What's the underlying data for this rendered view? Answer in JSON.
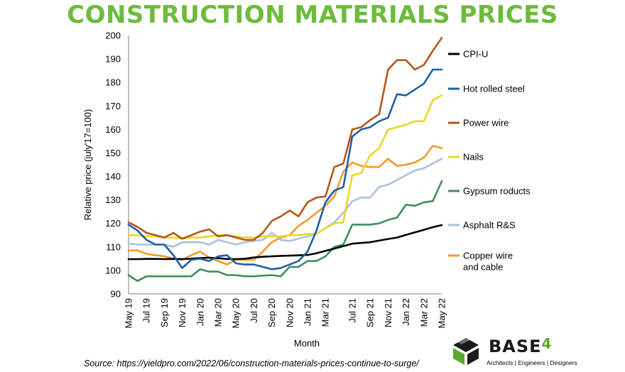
{
  "title": "CONSTRUCTION MATERIALS PRICES",
  "source": "Source: https://yieldpro.com/2022/06/construction-materials-prices-continue-to-surge/",
  "logo": {
    "name": "BASE",
    "superscript": "4",
    "tagline": "Architects | Engineers | Designers"
  },
  "colors": {
    "title": "#6dbb3c"
  },
  "chart_data": {
    "type": "line",
    "title": "CONSTRUCTION MATERIALS PRICES",
    "xlabel": "Month",
    "ylabel": "Relative price (july'17=100)",
    "ylim": [
      90,
      200
    ],
    "yticks": [
      90,
      100,
      110,
      120,
      130,
      140,
      150,
      160,
      170,
      180,
      190,
      200
    ],
    "xtick_labels": [
      "May 19",
      "Jul 19",
      "Sep 19",
      "Nov 19",
      "Jan 20",
      "Mar 20",
      "May 20",
      "Jul 20",
      "Sep 20",
      "Nov 20",
      "Jan 21",
      "Mar 21",
      "Jul 21",
      "Sep 21",
      "Nov 21",
      "Jan 22",
      "Mar 22",
      "May 22"
    ],
    "xtick_indices": [
      0,
      2,
      4,
      6,
      8,
      10,
      12,
      14,
      16,
      18,
      20,
      22,
      25,
      27,
      29,
      31,
      33,
      35
    ],
    "x": [
      "May 19",
      "Jun 19",
      "Jul 19",
      "Aug 19",
      "Sep 19",
      "Oct 19",
      "Nov 19",
      "Dec 19",
      "Jan 20",
      "Feb 20",
      "Mar 20",
      "Apr 20",
      "May 20",
      "Jun 20",
      "Jul 20",
      "Aug 20",
      "Sep 20",
      "Oct 20",
      "Nov 20",
      "Dec 20",
      "Jan 21",
      "Feb 21",
      "Mar 21",
      "Apr 21",
      "May 21",
      "Jul 21",
      "Aug 21",
      "Sep 21",
      "Oct 21",
      "Nov 21",
      "Dec 21",
      "Jan 22",
      "Feb 22",
      "Mar 22",
      "Apr 22",
      "May 22"
    ],
    "grid": false,
    "legend": "right",
    "series": [
      {
        "name": "CPI-U",
        "color": "#000000",
        "values": [
          104.8,
          104.8,
          104.9,
          104.9,
          104.8,
          104.9,
          104.8,
          105.0,
          105.3,
          105.4,
          105.2,
          104.9,
          104.8,
          105.0,
          105.5,
          105.8,
          106.0,
          106.2,
          106.3,
          106.4,
          106.6,
          107.3,
          108.3,
          109.3,
          110.3,
          111.4,
          111.7,
          112.0,
          112.7,
          113.4,
          114.0,
          115.1,
          116.2,
          117.3,
          118.4,
          119.3
        ]
      },
      {
        "name": "Hot rolled steel",
        "color": "#1f5fa6",
        "values": [
          119.5,
          117.0,
          113.0,
          111.0,
          111.0,
          106.5,
          101.0,
          104.5,
          105.0,
          104.0,
          106.0,
          106.5,
          103.0,
          102.5,
          102.5,
          101.5,
          100.5,
          101.0,
          102.5,
          104.0,
          108.0,
          117.0,
          129.0,
          134.0,
          135.5,
          157.0,
          160.0,
          161.0,
          163.5,
          165.0,
          175.0,
          174.5,
          177.0,
          179.5,
          185.5,
          185.5
        ]
      },
      {
        "name": "Power wire",
        "color": "#b5561c",
        "values": [
          120.5,
          118.5,
          116.0,
          115.0,
          114.0,
          116.0,
          113.5,
          115.0,
          116.5,
          117.5,
          114.5,
          115.0,
          114.0,
          113.0,
          113.0,
          116.0,
          121.0,
          123.0,
          125.5,
          123.0,
          129.0,
          131.0,
          131.5,
          144.0,
          145.5,
          160.0,
          161.0,
          164.0,
          166.5,
          185.5,
          189.5,
          189.5,
          185.5,
          187.5,
          193.5,
          199.0
        ]
      },
      {
        "name": "Nails",
        "color": "#e6d72a",
        "values": [
          115.0,
          115.0,
          114.5,
          114.5,
          114.0,
          114.0,
          113.5,
          114.0,
          114.0,
          114.5,
          115.0,
          115.0,
          114.5,
          114.0,
          114.0,
          114.5,
          114.5,
          114.5,
          115.0,
          115.0,
          115.5,
          115.5,
          118.0,
          120.0,
          120.5,
          140.5,
          141.5,
          149.0,
          152.0,
          160.0,
          161.0,
          162.0,
          163.5,
          163.5,
          172.5,
          174.5
        ]
      },
      {
        "name": "Gypsum roducts",
        "color": "#3f8f5b",
        "values": [
          98.0,
          95.5,
          97.5,
          97.5,
          97.5,
          97.5,
          97.5,
          97.5,
          100.5,
          99.5,
          99.5,
          98.0,
          98.0,
          97.5,
          97.5,
          97.8,
          98.0,
          97.5,
          101.5,
          101.5,
          104.0,
          104.0,
          106.0,
          110.0,
          111.0,
          119.5,
          119.5,
          119.5,
          120.0,
          121.5,
          122.5,
          128.0,
          127.5,
          129.0,
          129.5,
          138.0
        ]
      },
      {
        "name": "Asphalt R&S",
        "color": "#aac0df",
        "values": [
          111.5,
          111.0,
          111.0,
          111.0,
          111.0,
          110.0,
          112.0,
          112.0,
          112.0,
          111.0,
          113.0,
          112.0,
          111.0,
          112.0,
          112.5,
          113.0,
          116.0,
          113.0,
          112.5,
          113.5,
          114.5,
          115.5,
          118.0,
          120.5,
          124.5,
          129.5,
          131.0,
          131.0,
          135.5,
          136.5,
          138.5,
          140.5,
          142.5,
          143.5,
          145.5,
          147.5
        ]
      },
      {
        "name": "Copper wire\nand cable",
        "color": "#f39a2b",
        "values": [
          108.5,
          108.5,
          107.0,
          106.5,
          106.0,
          105.0,
          104.5,
          106.5,
          108.0,
          105.5,
          104.0,
          102.5,
          104.5,
          104.5,
          104.5,
          108.0,
          112.0,
          114.0,
          115.0,
          119.0,
          121.5,
          124.5,
          127.5,
          131.5,
          142.0,
          146.0,
          144.5,
          144.0,
          144.0,
          147.5,
          144.5,
          145.0,
          146.0,
          148.0,
          153.0,
          152.0
        ]
      }
    ]
  }
}
